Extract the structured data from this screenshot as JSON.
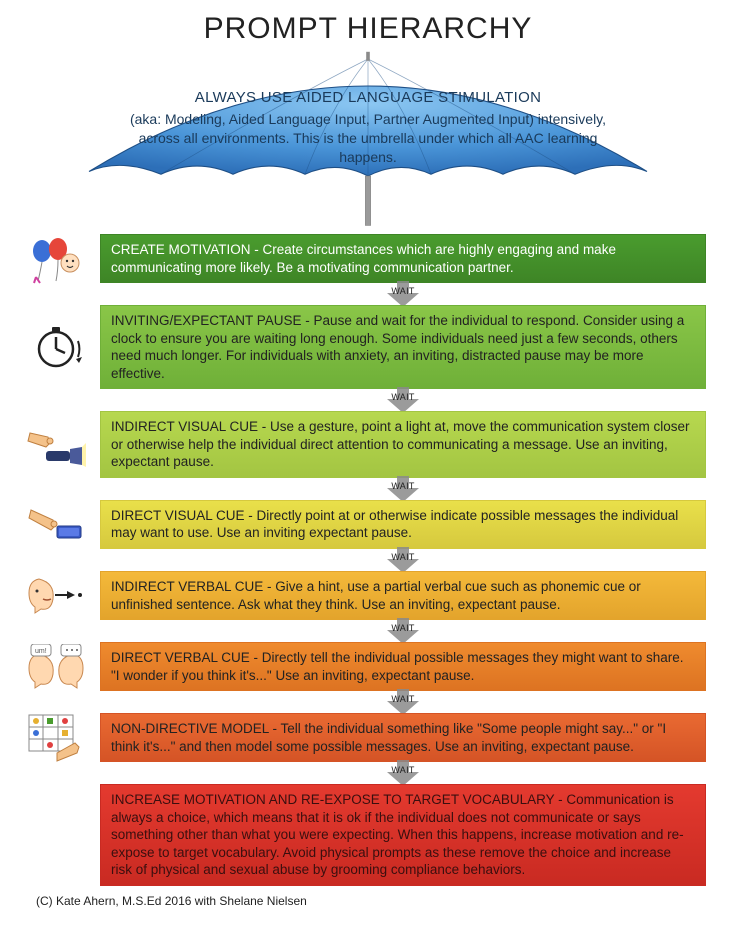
{
  "title": "PROMPT HIERARCHY",
  "umbrella": {
    "heading": "ALWAYS USE AIDED LANGUAGE STIMULATION",
    "body": "(aka: Modeling, Aided Language Input, Partner Augmented Input) intensively, across all environments. This is the umbrella under which all AAC learning happens.",
    "canopy_light": "#6bb3ef",
    "canopy_dark": "#2d6fb8",
    "stroke": "#1e4f86",
    "text_color": "#1a3a5a",
    "pole_color": "#8a8a8a"
  },
  "wait_label": "WAIT",
  "arrow_fill": "#8a8a8a",
  "steps": [
    {
      "label": "CREATE MOTIVATION",
      "text": " - Create circumstances which are highly engaging and make communicating more likely. Be a motivating communication partner.",
      "bg_top": "#4a9c2e",
      "bg_bottom": "#3e8526",
      "border": "#3e8526",
      "text_color": "#ffffff",
      "icon": "balloons"
    },
    {
      "label": "INVITING/EXPECTANT PAUSE",
      "text": " - Pause and wait for the individual to respond. Consider using a clock to ensure you are waiting long enough. Some individuals need just a few seconds, others need much longer. For individuals with anxiety, an inviting, distracted pause may be more effective.",
      "bg_top": "#8ac648",
      "bg_bottom": "#6fb038",
      "border": "#6fb038",
      "text_color": "#222222",
      "icon": "clock"
    },
    {
      "label": "INDIRECT VISUAL CUE",
      "text": " - Use a gesture, point a light at, move the communication system closer or otherwise help the individual direct attention to communicating a message. Use an inviting, expectant pause.",
      "bg_top": "#b7d84f",
      "bg_bottom": "#a3c542",
      "border": "#a3c542",
      "text_color": "#222222",
      "icon": "point-flashlight"
    },
    {
      "label": "DIRECT VISUAL CUE",
      "text": " - Directly point at or otherwise indicate possible messages the individual may want to use. Use an inviting expectant pause.",
      "bg_top": "#e9e04a",
      "bg_bottom": "#d6c93e",
      "border": "#d6c93e",
      "text_color": "#222222",
      "icon": "point-button"
    },
    {
      "label": "INDIRECT VERBAL CUE",
      "text": " - Give a hint, use a partial verbal cue such as phonemic cue or unfinished sentence. Ask what they think. Use an inviting, expectant pause.",
      "bg_top": "#f4b93a",
      "bg_bottom": "#e3a42c",
      "border": "#e3a42c",
      "text_color": "#222222",
      "icon": "head-speech"
    },
    {
      "label": "DIRECT VERBAL CUE",
      "text": " - Directly tell the individual possible messages they might want to share. \"I wonder if you think it's...\" Use an inviting, expectant pause.",
      "bg_top": "#ef8b2e",
      "bg_bottom": "#dd7322",
      "border": "#dd7322",
      "text_color": "#222222",
      "icon": "two-heads"
    },
    {
      "label": "NON-DIRECTIVE MODEL",
      "text": " - Tell the individual something like \"Some people might say...\" or \"I think it's...\" and then model some possible messages. Use an inviting, expectant pause.",
      "bg_top": "#e96a32",
      "bg_bottom": "#d55426",
      "border": "#d55426",
      "text_color": "#222222",
      "icon": "grid-point"
    },
    {
      "label": "INCREASE MOTIVATION AND RE-EXPOSE TO TARGET VOCABULARY",
      "text": " - Communication is always a choice, which means that it is ok if the individual does not communicate or says something other than what you were expecting. When this happens, increase motivation and re-expose to target vocabulary. Avoid physical prompts as these remove the choice and increase risk of physical and sexual abuse by grooming compliance behaviors.",
      "bg_top": "#e43a2f",
      "bg_bottom": "#c92a22",
      "border": "#c92a22",
      "text_color": "#3a0f0f",
      "icon": ""
    }
  ],
  "credit": "(C) Kate Ahern, M.S.Ed 2016 with Shelane Nielsen"
}
